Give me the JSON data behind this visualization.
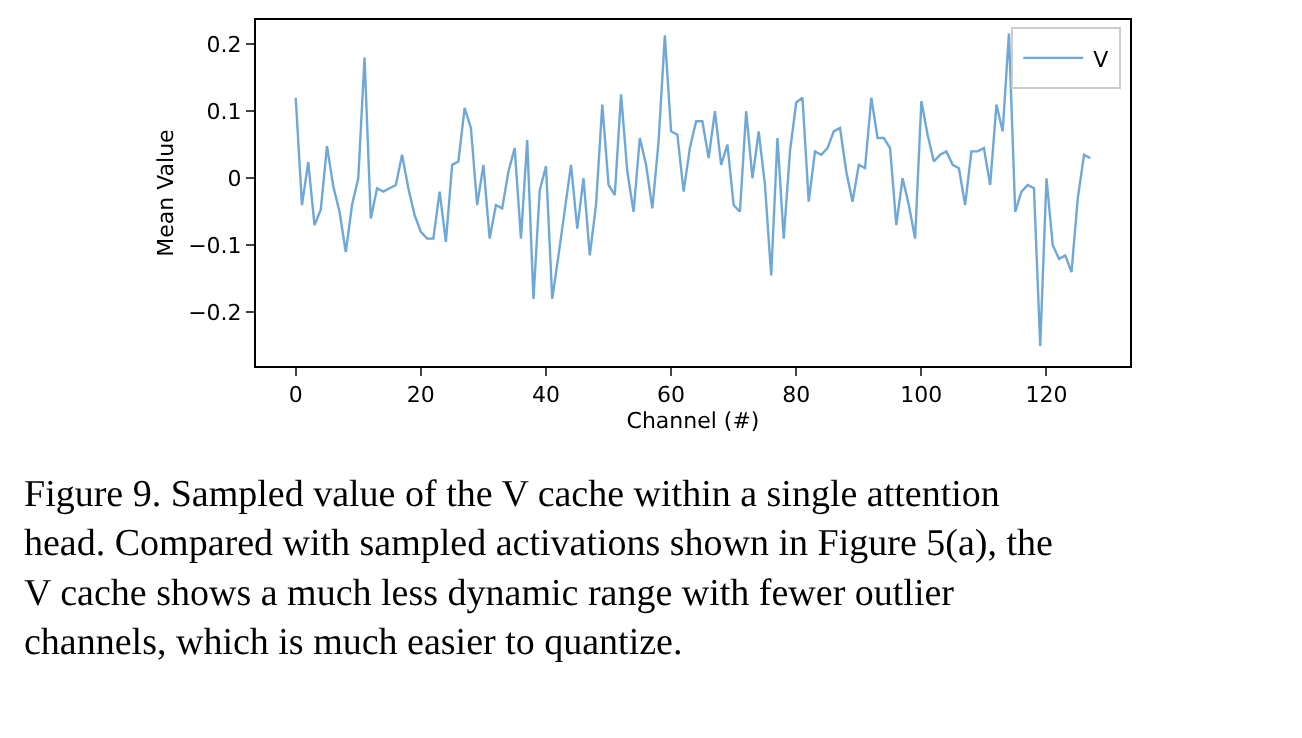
{
  "chart_data": {
    "type": "line",
    "xlabel": "Channel (#)",
    "ylabel": "Mean Value",
    "x": [
      0,
      1,
      2,
      3,
      4,
      5,
      6,
      7,
      8,
      9,
      10,
      11,
      12,
      13,
      14,
      15,
      16,
      17,
      18,
      19,
      20,
      21,
      22,
      23,
      24,
      25,
      26,
      27,
      28,
      29,
      30,
      31,
      32,
      33,
      34,
      35,
      36,
      37,
      38,
      39,
      40,
      41,
      42,
      43,
      44,
      45,
      46,
      47,
      48,
      49,
      50,
      51,
      52,
      53,
      54,
      55,
      56,
      57,
      58,
      59,
      60,
      61,
      62,
      63,
      64,
      65,
      66,
      67,
      68,
      69,
      70,
      71,
      72,
      73,
      74,
      75,
      76,
      77,
      78,
      79,
      80,
      81,
      82,
      83,
      84,
      85,
      86,
      87,
      88,
      89,
      90,
      91,
      92,
      93,
      94,
      95,
      96,
      97,
      98,
      99,
      100,
      101,
      102,
      103,
      104,
      105,
      106,
      107,
      108,
      109,
      110,
      111,
      112,
      113,
      114,
      115,
      116,
      117,
      118,
      119,
      120,
      121,
      122,
      123,
      124,
      125,
      126,
      127
    ],
    "series": [
      {
        "name": "V",
        "color": "#6fa8d6",
        "values": [
          0.12,
          -0.04,
          0.024,
          -0.07,
          -0.047,
          0.048,
          -0.012,
          -0.05,
          -0.11,
          -0.04,
          0.0,
          0.18,
          -0.06,
          -0.015,
          -0.02,
          -0.015,
          -0.01,
          0.035,
          -0.015,
          -0.055,
          -0.08,
          -0.09,
          -0.09,
          -0.02,
          -0.095,
          0.02,
          0.025,
          0.105,
          0.075,
          -0.04,
          0.02,
          -0.09,
          -0.04,
          -0.045,
          0.01,
          0.045,
          -0.09,
          0.057,
          -0.18,
          -0.018,
          0.018,
          -0.18,
          -0.115,
          -0.048,
          0.02,
          -0.075,
          0.0,
          -0.115,
          -0.04,
          0.11,
          -0.01,
          -0.025,
          0.125,
          0.01,
          -0.05,
          0.06,
          0.02,
          -0.045,
          0.055,
          0.213,
          0.07,
          0.065,
          -0.02,
          0.045,
          0.085,
          0.085,
          0.03,
          0.1,
          0.02,
          0.05,
          -0.04,
          -0.05,
          0.1,
          0.0,
          0.07,
          -0.01,
          -0.145,
          0.06,
          -0.09,
          0.04,
          0.113,
          0.12,
          -0.035,
          0.04,
          0.035,
          0.045,
          0.07,
          0.075,
          0.01,
          -0.035,
          0.02,
          0.015,
          0.12,
          0.06,
          0.06,
          0.045,
          -0.07,
          0.0,
          -0.04,
          -0.09,
          0.115,
          0.065,
          0.025,
          0.035,
          0.04,
          0.02,
          0.015,
          -0.04,
          0.04,
          0.04,
          0.045,
          -0.01,
          0.11,
          0.07,
          0.216,
          -0.05,
          -0.02,
          -0.01,
          -0.015,
          -0.25,
          0.0,
          -0.1,
          -0.12,
          -0.115,
          -0.14,
          -0.03,
          0.035,
          0.03
        ]
      }
    ],
    "xlim": [
      -6.35,
      133.35
    ],
    "xticks": [
      0,
      20,
      40,
      60,
      80,
      100,
      120
    ],
    "ylim": [
      -0.28,
      0.236
    ],
    "yticks": [
      {
        "value": -0.2,
        "label": "−0.2"
      },
      {
        "value": -0.1,
        "label": "−0.1"
      },
      0.0,
      0.1,
      0.2
    ],
    "legend": "top right",
    "marker": "none",
    "line_style": "solid",
    "annotations": [
      "Figure 9. Sampled value of the V cache within a single attention head. Compared with sampled activations shown in Figure 5(a), the V cache shows a much less dynamic range with fewer outlier channels, which is much easier to quantize."
    ]
  }
}
